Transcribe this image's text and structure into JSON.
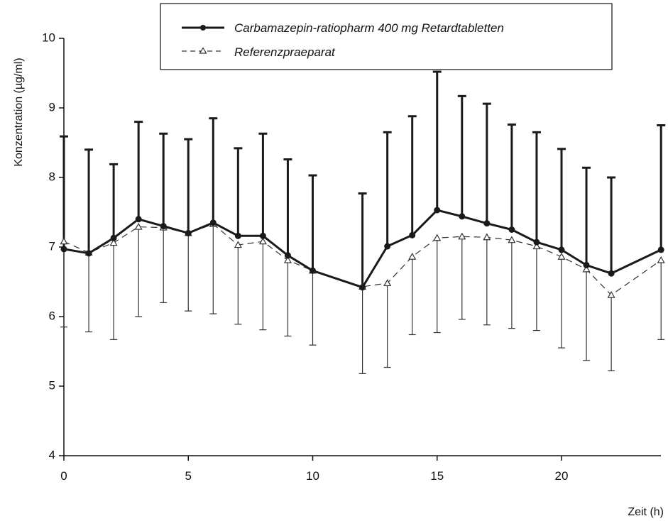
{
  "chart_data": {
    "type": "line",
    "xlabel": "Zeit (h)",
    "ylabel": "Konzentration (µg/ml)",
    "xlim": [
      0,
      24
    ],
    "ylim": [
      4,
      10
    ],
    "xticks": [
      0,
      5,
      10,
      15,
      20
    ],
    "yticks": [
      4,
      5,
      6,
      7,
      8,
      9,
      10
    ],
    "grid": false,
    "legend_position": "top-right",
    "legend": [
      "Carbamazepin-ratiopharm 400 mg Retardtabletten",
      "Referenzpraeparat"
    ],
    "series": [
      {
        "name": "Carbamazepin-ratiopharm 400 mg Retardtabletten",
        "color": "#1a1a1a",
        "marker": "circle",
        "line_style": "solid",
        "error_direction": "up",
        "x": [
          0,
          1,
          2,
          3,
          4,
          5,
          6,
          7,
          8,
          9,
          10,
          12,
          13,
          14,
          15,
          16,
          17,
          18,
          19,
          20,
          21,
          22,
          24
        ],
        "y": [
          6.97,
          6.91,
          7.13,
          7.4,
          7.3,
          7.2,
          7.35,
          7.16,
          7.16,
          6.88,
          6.66,
          6.42,
          7.01,
          7.17,
          7.53,
          7.44,
          7.34,
          7.25,
          7.07,
          6.96,
          6.74,
          6.62,
          6.96
        ],
        "error": [
          1.62,
          1.49,
          1.06,
          1.4,
          1.33,
          1.35,
          1.5,
          1.26,
          1.47,
          1.38,
          1.37,
          1.35,
          1.64,
          1.71,
          1.99,
          1.73,
          1.72,
          1.51,
          1.58,
          1.45,
          1.4,
          1.38,
          1.79
        ]
      },
      {
        "name": "Referenzpraeparat",
        "color": "#333333",
        "marker": "triangle-open",
        "line_style": "dashed",
        "error_direction": "down",
        "x": [
          0,
          1,
          2,
          3,
          4,
          5,
          6,
          7,
          8,
          9,
          10,
          12,
          13,
          14,
          15,
          16,
          17,
          18,
          19,
          20,
          21,
          22,
          24
        ],
        "y": [
          7.08,
          6.92,
          7.06,
          7.29,
          7.28,
          7.2,
          7.33,
          7.03,
          7.08,
          6.81,
          6.66,
          6.43,
          6.48,
          6.86,
          7.13,
          7.15,
          7.14,
          7.1,
          7.01,
          6.86,
          6.68,
          6.31,
          6.81
        ],
        "error": [
          1.23,
          1.14,
          1.39,
          1.29,
          1.08,
          1.12,
          1.29,
          1.14,
          1.27,
          1.09,
          1.07,
          1.25,
          1.21,
          1.12,
          1.36,
          1.19,
          1.26,
          1.27,
          1.21,
          1.31,
          1.31,
          1.09,
          1.14
        ]
      }
    ]
  }
}
